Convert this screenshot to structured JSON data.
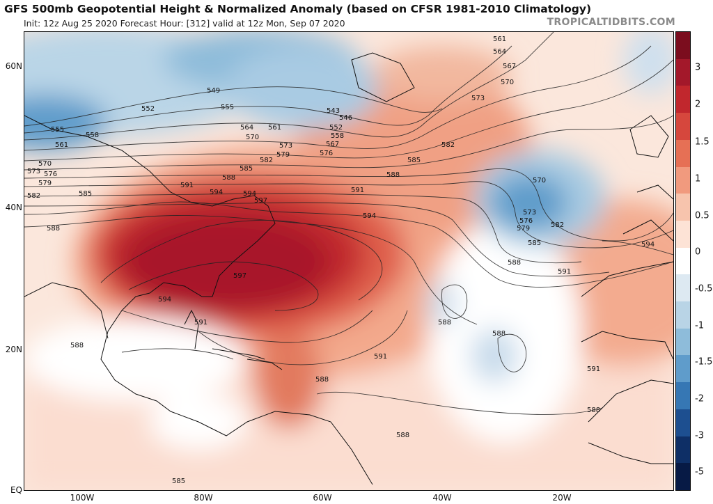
{
  "header": {
    "title": "GFS 500mb Geopotential Height & Normalized Anomaly (based on CFSR 1981-2010 Climatology)",
    "subtitle": "Init: 12z Aug 25 2020   Forecast Hour: [312]   valid at 12z Mon, Sep 07 2020",
    "brand": "TROPICALTIDBITS.COM"
  },
  "map": {
    "lat_labels": [
      "60N",
      "40N",
      "20N",
      "EQ"
    ],
    "lon_labels": [
      "100W",
      "80W",
      "60W",
      "40W",
      "20W"
    ]
  },
  "colorbar": {
    "labels": [
      "3",
      "2",
      "1.5",
      "1",
      "0.5",
      "0",
      "-0.5",
      "-1",
      "-1.5",
      "-2",
      "-3",
      "-5"
    ],
    "colors": [
      "#7b0d1e",
      "#a3182a",
      "#c1272d",
      "#d6473d",
      "#e67055",
      "#f19a7e",
      "#f7c4ad",
      "#fde3d6",
      "#ffffff",
      "#dde9f2",
      "#b9d4e6",
      "#8ebcda",
      "#5f9ccb",
      "#3677b4",
      "#1d4f90",
      "#0e2f66",
      "#071a45"
    ]
  },
  "contour_labels": [
    {
      "text": "549"
    },
    {
      "text": "552"
    },
    {
      "text": "555"
    },
    {
      "text": "555"
    },
    {
      "text": "558"
    },
    {
      "text": "561"
    },
    {
      "text": "561"
    },
    {
      "text": "564"
    },
    {
      "text": "567"
    },
    {
      "text": "570"
    },
    {
      "text": "570"
    },
    {
      "text": "573"
    },
    {
      "text": "573"
    },
    {
      "text": "576"
    },
    {
      "text": "576"
    },
    {
      "text": "579"
    },
    {
      "text": "579"
    },
    {
      "text": "582"
    },
    {
      "text": "582"
    },
    {
      "text": "585"
    },
    {
      "text": "585"
    },
    {
      "text": "588"
    },
    {
      "text": "588"
    },
    {
      "text": "591"
    },
    {
      "text": "594"
    },
    {
      "text": "594"
    },
    {
      "text": "597"
    },
    {
      "text": "597"
    },
    {
      "text": "594"
    },
    {
      "text": "594"
    },
    {
      "text": "591"
    },
    {
      "text": "591"
    },
    {
      "text": "588"
    },
    {
      "text": "588"
    },
    {
      "text": "591"
    },
    {
      "text": "588"
    },
    {
      "text": "588"
    },
    {
      "text": "561"
    },
    {
      "text": "564"
    },
    {
      "text": "567"
    },
    {
      "text": "570"
    },
    {
      "text": "573"
    },
    {
      "text": "582"
    },
    {
      "text": "585"
    },
    {
      "text": "588"
    },
    {
      "text": "570"
    },
    {
      "text": "573"
    },
    {
      "text": "576"
    },
    {
      "text": "579"
    },
    {
      "text": "582"
    },
    {
      "text": "585"
    },
    {
      "text": "588"
    },
    {
      "text": "591"
    },
    {
      "text": "594"
    },
    {
      "text": "591"
    },
    {
      "text": "588"
    },
    {
      "text": "588"
    },
    {
      "text": "585"
    },
    {
      "text": "543"
    },
    {
      "text": "546"
    },
    {
      "text": "552"
    },
    {
      "text": "558"
    }
  ]
}
